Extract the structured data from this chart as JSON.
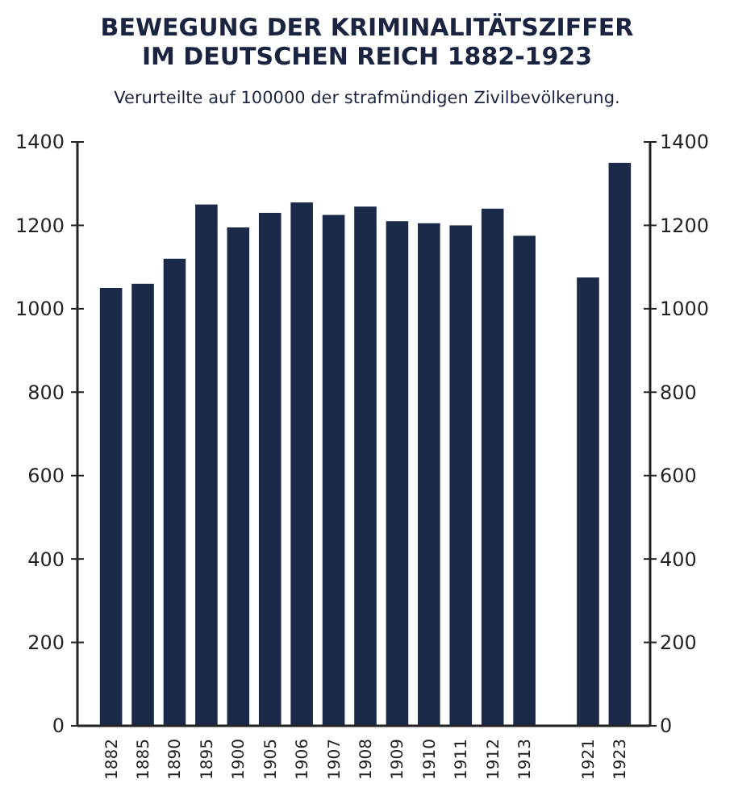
{
  "chart_data": {
    "type": "bar",
    "title": "BEWEGUNG DER KRIMINALITÄTSZIFFER IM DEUTSCHEN REICH 1882-1923",
    "subtitle": "Verurteilte auf 100000 der strafmündigen Zivilbevölkerung.",
    "categories": [
      "1882",
      "1885",
      "1890",
      "1895",
      "1900",
      "1905",
      "1906",
      "1907",
      "1908",
      "1909",
      "1910",
      "1911",
      "1912",
      "1913",
      null,
      "1921",
      "1923"
    ],
    "values": [
      1050,
      1060,
      1120,
      1250,
      1195,
      1230,
      1255,
      1225,
      1245,
      1210,
      1205,
      1200,
      1240,
      1175,
      null,
      1075,
      1350
    ],
    "color": "#1c2a4a",
    "ylim": [
      0,
      1400
    ],
    "yticks": [
      0,
      200,
      400,
      600,
      800,
      1000,
      1200,
      1400
    ],
    "y2lim": [
      0,
      1400
    ],
    "y2ticks": [
      0,
      200,
      400,
      600,
      800,
      1000,
      1200,
      1400
    ],
    "grid": false
  }
}
